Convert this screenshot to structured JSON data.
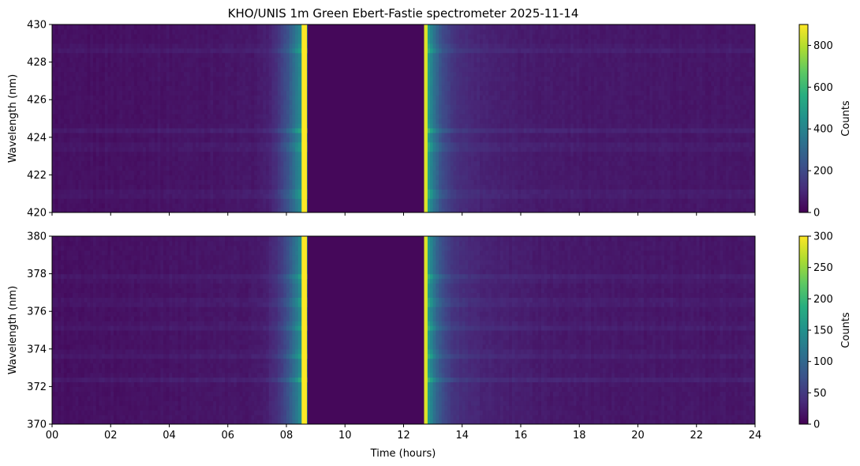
{
  "chart_data": {
    "type": "heatmap",
    "title": "KHO/UNIS 1m Green Ebert-Fastie spectrometer 2025-11-14",
    "xlabel": "Time (hours)",
    "x_ticks": [
      "00",
      "02",
      "04",
      "06",
      "08",
      "10",
      "12",
      "14",
      "16",
      "18",
      "20",
      "22",
      "24"
    ],
    "xlim": [
      0,
      24
    ],
    "colormap": "viridis",
    "panels": [
      {
        "ylabel": "Wavelength (nm)",
        "ylim": [
          420,
          430
        ],
        "y_ticks": [
          "420",
          "422",
          "424",
          "426",
          "428",
          "430"
        ],
        "colorbar_label": "Counts",
        "clim": [
          0,
          900
        ],
        "colorbar_ticks": [
          "0",
          "200",
          "400",
          "600",
          "800"
        ],
        "no_data_interval_hours": [
          8.7,
          12.7
        ],
        "bright_band_hours": [
          [
            7.5,
            8.7
          ],
          [
            12.7,
            14.2
          ]
        ],
        "line_rows_nm": [
          428.7,
          424.4,
          423.5,
          421.0
        ]
      },
      {
        "ylabel": "Wavelength (nm)",
        "ylim": [
          370,
          380
        ],
        "y_ticks": [
          "370",
          "372",
          "374",
          "376",
          "378",
          "380"
        ],
        "colorbar_label": "Counts",
        "clim": [
          0,
          300
        ],
        "colorbar_ticks": [
          "0",
          "50",
          "100",
          "150",
          "200",
          "250",
          "300"
        ],
        "no_data_interval_hours": [
          8.7,
          12.7
        ],
        "bright_band_hours": [
          [
            7.5,
            8.7
          ],
          [
            12.7,
            14.2
          ]
        ],
        "line_rows_nm": [
          372.4,
          373.7,
          375.2,
          376.5,
          377.8
        ]
      }
    ]
  }
}
